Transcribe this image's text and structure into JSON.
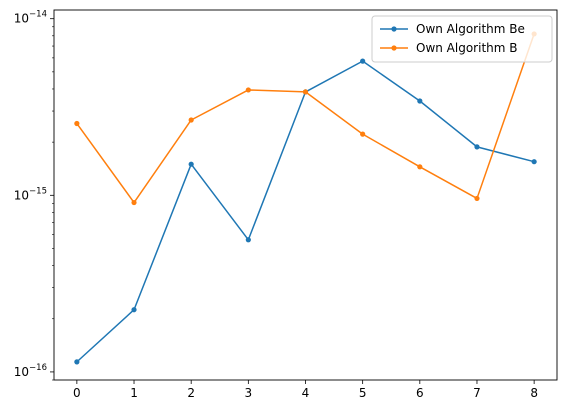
{
  "chart_data": {
    "type": "line",
    "title": "",
    "xlabel": "",
    "ylabel": "",
    "y_scale": "log",
    "ylim": [
      9e-17,
      1.12e-14
    ],
    "xlim": [
      -0.4,
      8.4
    ],
    "grid": false,
    "legend_position": "upper-right",
    "x": [
      0,
      1,
      2,
      3,
      4,
      5,
      6,
      7,
      8
    ],
    "x_ticks": [
      "0",
      "1",
      "2",
      "3",
      "4",
      "5",
      "6",
      "7",
      "8"
    ],
    "y_ticks": [
      {
        "value": 1e-16,
        "base": "10",
        "exp": "−16"
      },
      {
        "value": 1e-15,
        "base": "10",
        "exp": "−15"
      },
      {
        "value": 1e-14,
        "base": "10",
        "exp": "−14"
      }
    ],
    "series": [
      {
        "name": "Own Algorithm Be",
        "color": "#1f77b4",
        "marker": "dot",
        "values": [
          1.14e-16,
          2.25e-16,
          1.5e-15,
          5.6e-16,
          3.85e-15,
          5.75e-15,
          3.42e-15,
          1.88e-15,
          1.55e-15
        ]
      },
      {
        "name": "Own Algorithm B",
        "color": "#ff7f0e",
        "marker": "dot",
        "values": [
          2.55e-15,
          9.1e-16,
          2.67e-15,
          3.95e-15,
          3.85e-15,
          2.22e-15,
          1.45e-15,
          9.6e-16,
          8.2e-15
        ]
      }
    ]
  }
}
